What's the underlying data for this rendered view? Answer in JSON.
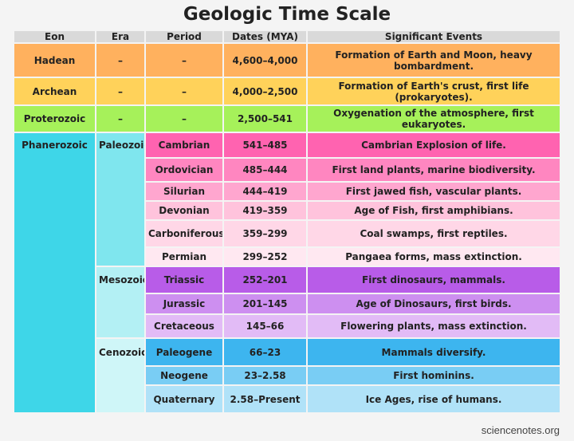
{
  "title": "Geologic Time Scale",
  "headers": [
    "Eon",
    "Era",
    "Period",
    "Dates (MYA)",
    "Significant Events"
  ],
  "rows": [
    {
      "eon": "Hadean",
      "era": "–",
      "period": "–",
      "dates": "4,600–4,000",
      "events": "Formation of Earth and Moon, heavy bombardment."
    },
    {
      "eon": "Archean",
      "era": "–",
      "period": "–",
      "dates": "4,000–2,500",
      "events": "Formation of Earth's crust, first life (prokaryotes)."
    },
    {
      "eon": "Proterozoic",
      "era": "–",
      "period": "–",
      "dates": "2,500–541",
      "events": "Oxygenation of the atmosphere, first eukaryotes."
    },
    {
      "eon": "Phanerozoic",
      "era": "Paleozoic",
      "period": "Cambrian",
      "dates": "541–485",
      "events": "Cambrian Explosion of life."
    },
    {
      "period": "Ordovician",
      "dates": "485–444",
      "events": "First land plants, marine biodiversity."
    },
    {
      "period": "Silurian",
      "dates": "444–419",
      "events": "First jawed fish, vascular plants."
    },
    {
      "period": "Devonian",
      "dates": "419–359",
      "events": "Age of Fish, first amphibians."
    },
    {
      "period": "Carboniferous",
      "dates": "359–299",
      "events": "Coal swamps, first reptiles."
    },
    {
      "period": "Permian",
      "dates": "299–252",
      "events": "Pangaea forms, mass extinction."
    },
    {
      "era": "Mesozoic",
      "period": "Triassic",
      "dates": "252–201",
      "events": "First dinosaurs, mammals."
    },
    {
      "period": "Jurassic",
      "dates": "201–145",
      "events": "Age of Dinosaurs, first birds."
    },
    {
      "period": "Cretaceous",
      "dates": "145–66",
      "events": "Flowering plants, mass extinction."
    },
    {
      "era": "Cenozoic",
      "period": "Paleogene",
      "dates": "66–23",
      "events": "Mammals diversify."
    },
    {
      "period": "Neogene",
      "dates": "23–2.58",
      "events": "First hominins."
    },
    {
      "period": "Quaternary",
      "dates": "2.58–Present",
      "events": "Ice Ages, rise of humans."
    }
  ],
  "colors": {
    "header": "#d9d9d9",
    "hadean": "#ffb15e",
    "archean": "#ffd25a",
    "proterozoic": "#a6f15a",
    "phanerozoic": "#3ed6e8",
    "paleozoic": "#7fe6ee",
    "mesozoic": "#b3f0f4",
    "cenozoic": "#cff6f8",
    "cambrian": "#ff63b0",
    "ordovician": "#ff86c0",
    "silurian": "#ffa6cf",
    "devonian": "#ffc3dc",
    "carboniferous": "#ffd7e7",
    "permian": "#ffe8f1",
    "triassic": "#b85ce8",
    "jurassic": "#cd8ff0",
    "cretaceous": "#e2bbf6",
    "paleogene": "#3db5ef",
    "neogene": "#79cdf4",
    "quaternary": "#b0e2f8"
  },
  "watermark": "sciencenotes.org"
}
